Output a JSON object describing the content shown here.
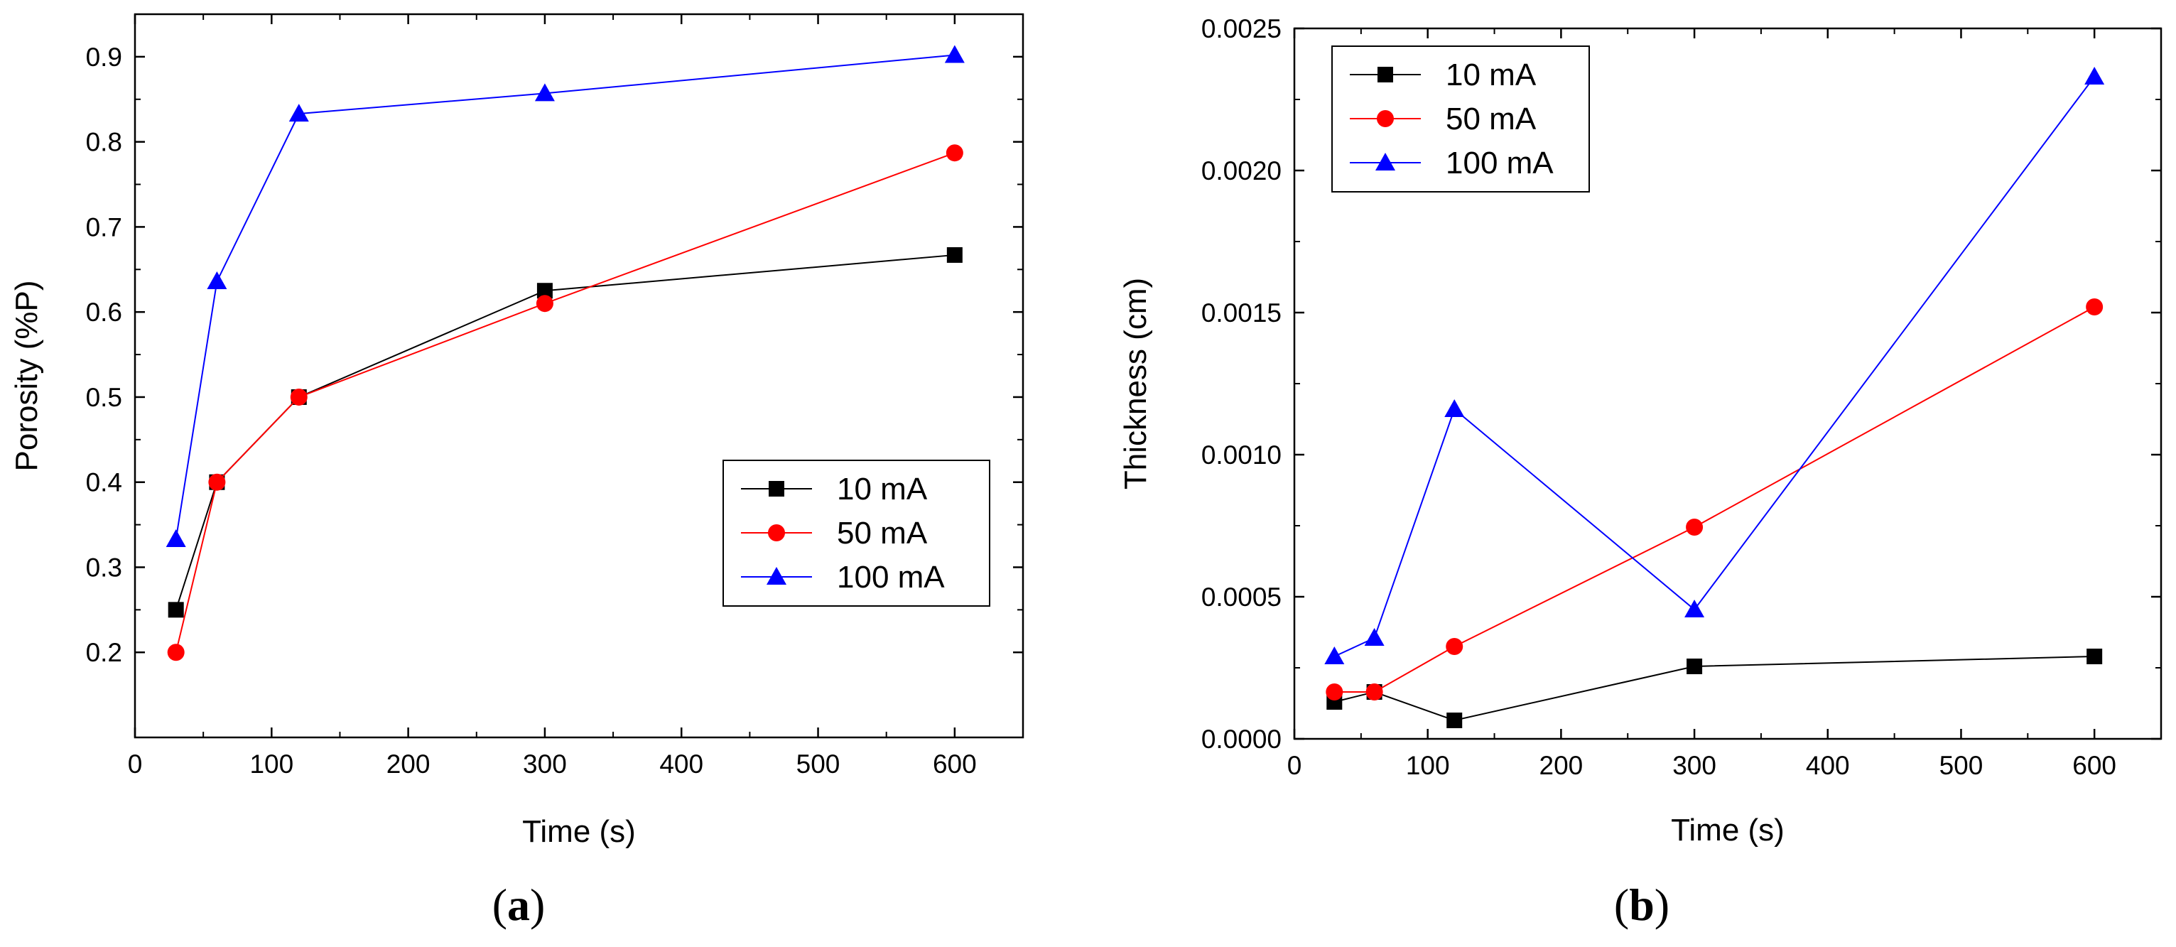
{
  "chart_data": [
    {
      "type": "line",
      "panel_label": "(a)",
      "xlabel": "Time (s)",
      "ylabel": "Porosity (%P)",
      "xlim": [
        0,
        650
      ],
      "ylim": [
        0.1,
        0.95
      ],
      "xticks": [
        "0",
        "100",
        "200",
        "300",
        "400",
        "500",
        "600"
      ],
      "yticks": [
        "0.2",
        "0.3",
        "0.4",
        "0.5",
        "0.6",
        "0.7",
        "0.8",
        "0.9"
      ],
      "legend_position": "bottom-right",
      "series": [
        {
          "name": "10 mA",
          "color": "#000000",
          "marker": "square",
          "x": [
            30,
            60,
            120,
            300,
            600
          ],
          "values": [
            0.25,
            0.4,
            0.5,
            0.625,
            0.667
          ]
        },
        {
          "name": "50 mA",
          "color": "#ff0000",
          "marker": "circle",
          "x": [
            30,
            60,
            120,
            300,
            600
          ],
          "values": [
            0.2,
            0.4,
            0.5,
            0.61,
            0.787
          ]
        },
        {
          "name": "100 mA",
          "color": "#0000ff",
          "marker": "triangle",
          "x": [
            30,
            60,
            120,
            300,
            600
          ],
          "values": [
            0.333,
            0.636,
            0.833,
            0.857,
            0.902
          ]
        }
      ]
    },
    {
      "type": "line",
      "panel_label": "(b)",
      "xlabel": "Time (s)",
      "ylabel": "Thickness (cm)",
      "xlim": [
        0,
        650
      ],
      "ylim": [
        0.0,
        0.0025
      ],
      "xticks": [
        "0",
        "100",
        "200",
        "300",
        "400",
        "500",
        "600"
      ],
      "yticks": [
        "0.0000",
        "0.0005",
        "0.0010",
        "0.0015",
        "0.0020",
        "0.0025"
      ],
      "legend_position": "top-left",
      "series": [
        {
          "name": "10 mA",
          "color": "#000000",
          "marker": "square",
          "x": [
            30,
            60,
            120,
            300,
            600
          ],
          "values": [
            0.00013,
            0.000165,
            6.5e-05,
            0.000255,
            0.00029
          ]
        },
        {
          "name": "50 mA",
          "color": "#ff0000",
          "marker": "circle",
          "x": [
            30,
            60,
            120,
            300,
            600
          ],
          "values": [
            0.000165,
            0.000165,
            0.000325,
            0.000745,
            0.00152
          ]
        },
        {
          "name": "100 mA",
          "color": "#0000ff",
          "marker": "triangle",
          "x": [
            30,
            60,
            120,
            300,
            600
          ],
          "values": [
            0.00029,
            0.000355,
            0.00116,
            0.000455,
            0.00233
          ]
        }
      ]
    }
  ]
}
